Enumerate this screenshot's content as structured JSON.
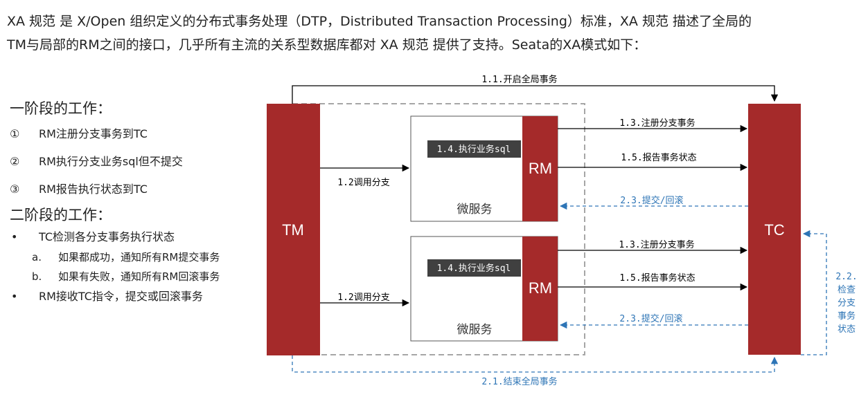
{
  "intro": {
    "line1": "XA 规范 是 X/Open 组织定义的分布式事务处理（DTP，Distributed Transaction Processing）标准，XA 规范 描述了全局的",
    "line2": "TM与局部的RM之间的接口，几乎所有主流的关系型数据库都对 XA 规范 提供了支持。Seata的XA模式如下："
  },
  "phase1": {
    "title": "一阶段的工作：",
    "steps": [
      {
        "num": "①",
        "text": "RM注册分支事务到TC"
      },
      {
        "num": "②",
        "text": "RM执行分支业务sql但不提交"
      },
      {
        "num": "③",
        "text": "RM报告执行状态到TC"
      }
    ]
  },
  "phase2": {
    "title": "二阶段的工作：",
    "bullet_char": "•",
    "bullets": [
      {
        "text": "TC检测各分支事务执行状态"
      },
      {
        "text": "RM接收TC指令，提交或回滚事务"
      }
    ],
    "subs": [
      {
        "mark": "a.",
        "text": "如果都成功，通知所有RM提交事务"
      },
      {
        "mark": "b.",
        "text": "如果有失败，通知所有RM回滚事务"
      }
    ]
  },
  "diagram": {
    "tm_label": "TM",
    "tc_label": "TC",
    "rm_label": "RM",
    "microservice_label": "微服务",
    "exec_sql_tag": "1.4.执行业务sql",
    "call_branch": "1.2调用分支",
    "open_global": "1.1.开启全局事务",
    "register_branch": "1.3.注册分支事务",
    "report_status": "1.5.报告事务状态",
    "commit_rollback": "2.3.提交/回滚",
    "end_global": "2.1.结束全局事务",
    "check_status_lines": [
      "2.2.",
      "检查",
      "分支",
      "事务",
      "状态"
    ],
    "colors": {
      "box_red": "#a52a2a",
      "arrow_blue": "#2e75b6",
      "dashed_gray": "#a6a6a6",
      "tag_bg": "#404040"
    }
  }
}
